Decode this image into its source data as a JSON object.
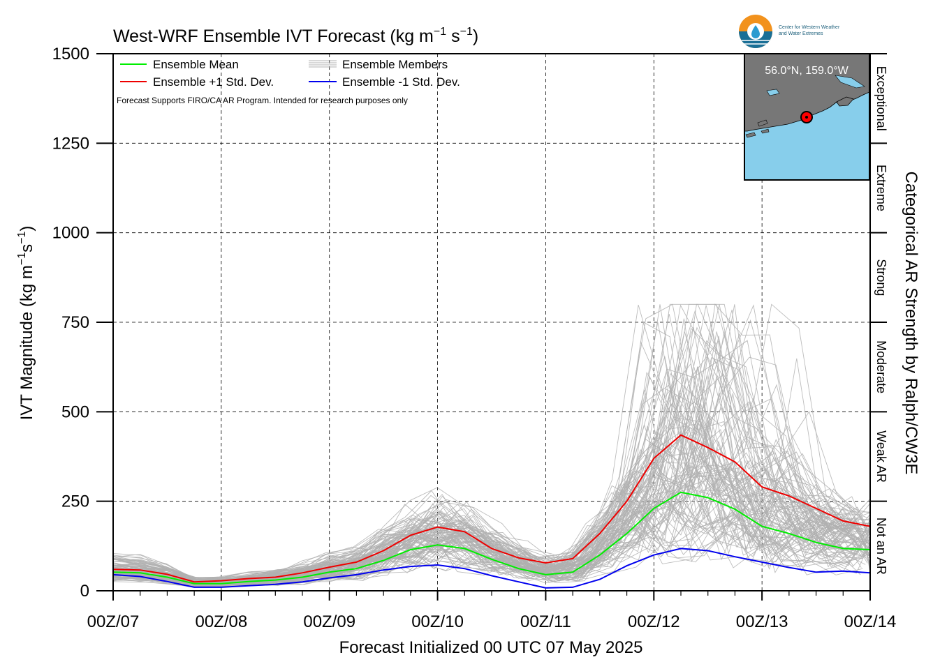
{
  "title": {
    "base": "West-WRF Ensemble IVT Forecast (kg m",
    "sup1": "−1",
    "mid": " s",
    "sup2": "−1",
    "end": ")"
  },
  "ylabel": {
    "base": "IVT Magnitude (kg m",
    "sup1": "−1",
    "mid": "s",
    "sup2": "−1",
    "end": ")"
  },
  "xlabel": "Forecast Initialized 00 UTC 07 May 2025",
  "right_label": "Categorical AR Strength by Ralph/CW3E",
  "note": "Forecast Supports FIRO/CA AR Program. Intended for research purposes only",
  "logo": {
    "line1": "Center for Western Weather",
    "line2": "and Water Extremes"
  },
  "inset": {
    "location": "56.0°N, 159.0°W"
  },
  "legend": [
    {
      "label": "Ensemble Mean",
      "color": "#00ee00"
    },
    {
      "label": "Ensemble +1 Std. Dev.",
      "color": "#ee0000"
    },
    {
      "label": "Ensemble Members",
      "color": "#b0b0b0"
    },
    {
      "label": "Ensemble -1 Std. Dev.",
      "color": "#0000ee"
    }
  ],
  "categories": [
    {
      "label": "Not an AR",
      "lo": 0,
      "hi": 250
    },
    {
      "label": "Weak AR",
      "lo": 250,
      "hi": 500
    },
    {
      "label": "Moderate",
      "lo": 500,
      "hi": 750
    },
    {
      "label": "Strong",
      "lo": 750,
      "hi": 1000
    },
    {
      "label": "Extreme",
      "lo": 1000,
      "hi": 1250
    },
    {
      "label": "Exceptional",
      "lo": 1250,
      "hi": 1500
    }
  ],
  "chart_data": {
    "type": "line",
    "x_unit": "forecast hour",
    "xlim": [
      0,
      168
    ],
    "ylim": [
      0,
      1500
    ],
    "x_ticks": [
      0,
      24,
      48,
      72,
      96,
      120,
      144,
      168
    ],
    "x_tick_labels": [
      "00Z/07",
      "00Z/08",
      "00Z/09",
      "00Z/10",
      "00Z/11",
      "00Z/12",
      "00Z/13",
      "00Z/14"
    ],
    "y_ticks": [
      0,
      250,
      500,
      750,
      1000,
      1250,
      1500
    ],
    "y_tick_labels": [
      "0",
      "250",
      "500",
      "750",
      "1000",
      "1250",
      "1500"
    ],
    "grid": true,
    "legend_position": "top-left",
    "x": [
      0,
      6,
      12,
      18,
      24,
      30,
      36,
      42,
      48,
      54,
      60,
      66,
      72,
      78,
      84,
      90,
      96,
      102,
      108,
      114,
      120,
      126,
      132,
      138,
      144,
      150,
      156,
      162,
      168
    ],
    "series": [
      {
        "name": "Ensemble Mean",
        "color": "#00ee00",
        "values": [
          52,
          50,
          38,
          20,
          20,
          26,
          30,
          38,
          52,
          62,
          85,
          115,
          128,
          118,
          88,
          62,
          45,
          52,
          100,
          160,
          230,
          275,
          260,
          228,
          180,
          160,
          135,
          118,
          115
        ]
      },
      {
        "name": "Ensemble +1 Std. Dev.",
        "color": "#ee0000",
        "values": [
          60,
          58,
          46,
          25,
          28,
          34,
          38,
          50,
          66,
          80,
          112,
          155,
          178,
          165,
          118,
          92,
          78,
          90,
          160,
          250,
          370,
          435,
          400,
          360,
          290,
          265,
          230,
          195,
          180
        ]
      },
      {
        "name": "Ensemble -1 Std. Dev.",
        "color": "#0000ee",
        "values": [
          45,
          40,
          26,
          10,
          10,
          14,
          18,
          25,
          36,
          45,
          58,
          68,
          72,
          62,
          42,
          25,
          8,
          10,
          32,
          70,
          100,
          118,
          112,
          95,
          80,
          65,
          52,
          55,
          50
        ]
      }
    ]
  }
}
